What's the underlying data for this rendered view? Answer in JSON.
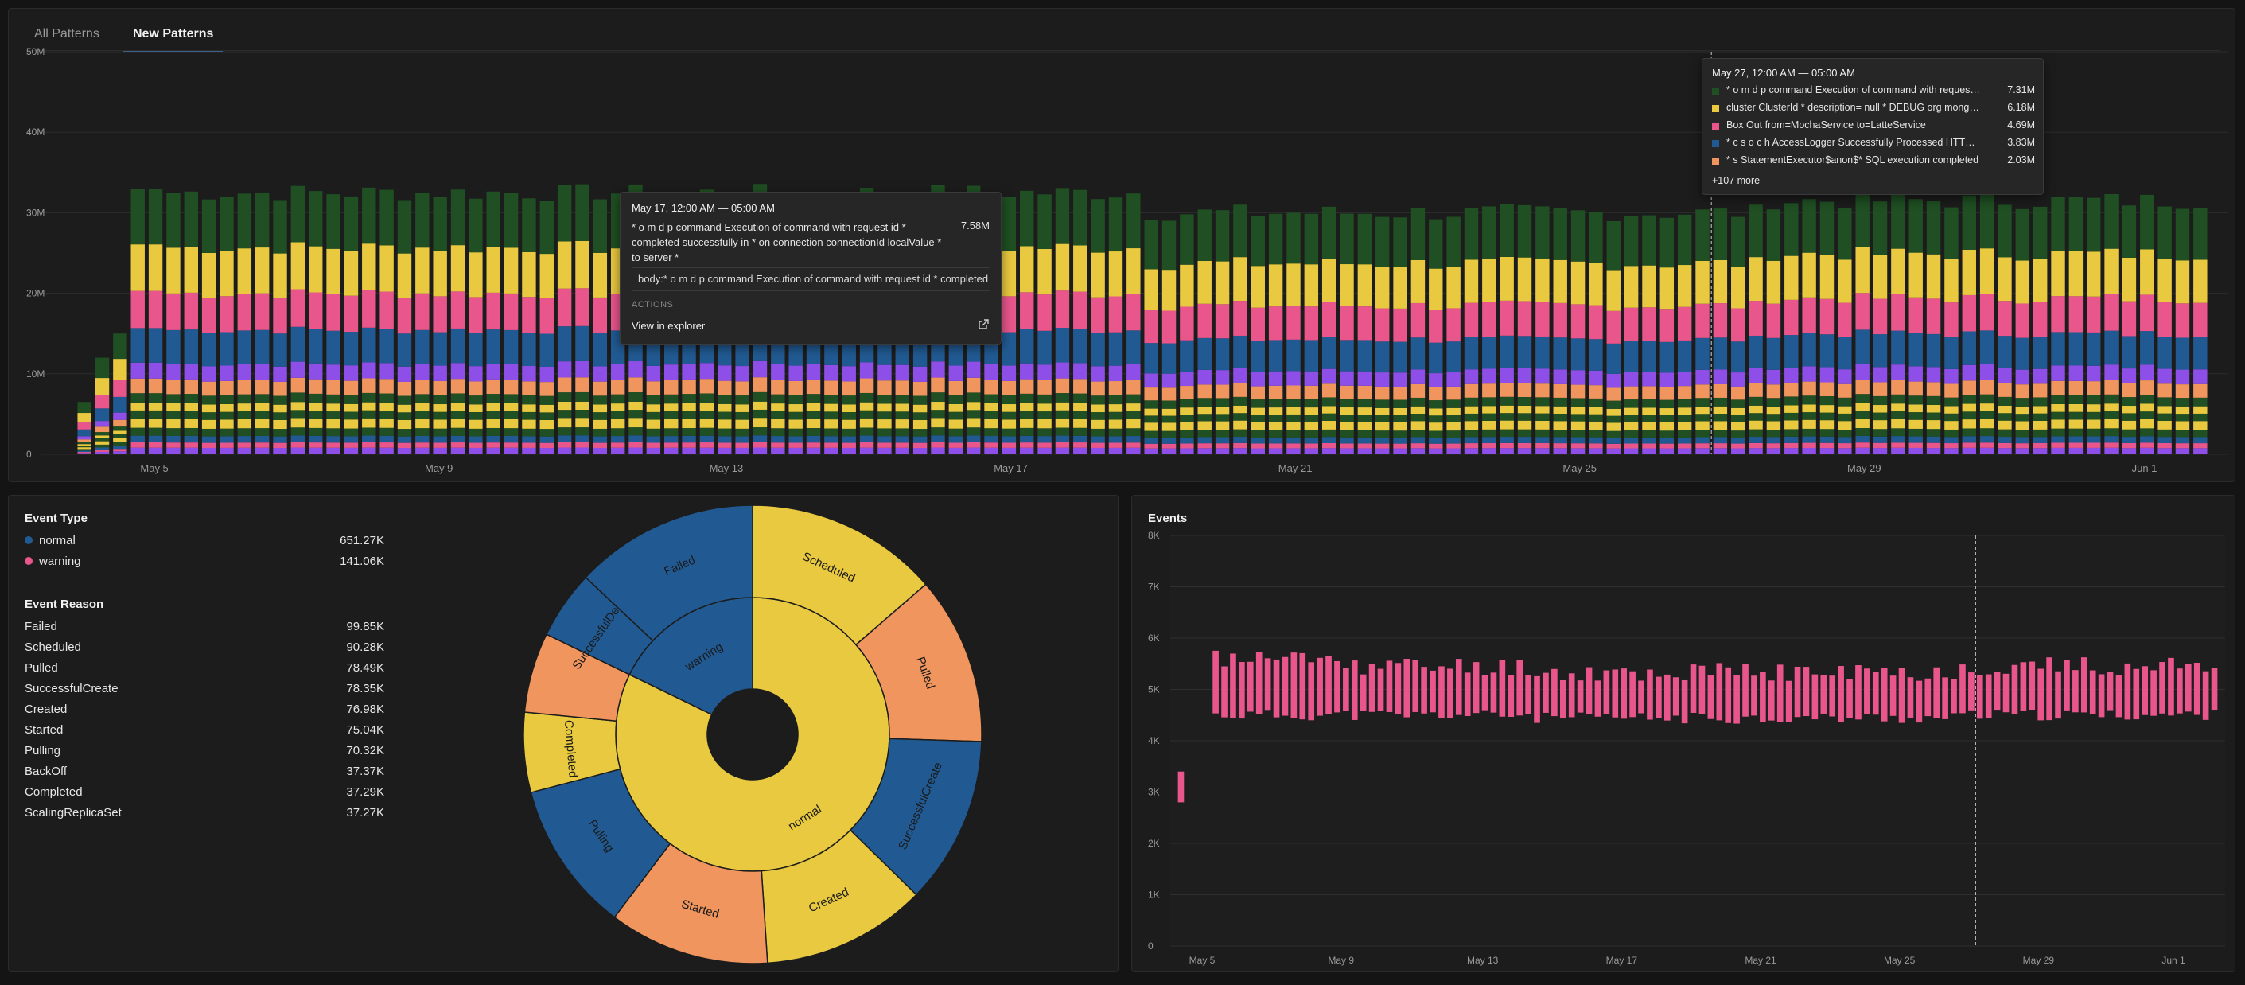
{
  "tabs": [
    {
      "label": "All Patterns",
      "active": false
    },
    {
      "label": "New Patterns",
      "active": true
    }
  ],
  "colors": {
    "dark_green": "#1f4f22",
    "yellow": "#e8c93f",
    "pink": "#e8568c",
    "blue": "#215a93",
    "purple": "#8e4fe8",
    "orange": "#f0955e",
    "accent_tab": "#4a90e2"
  },
  "patterns_chart": {
    "y_ticks": [
      "0",
      "10M",
      "20M",
      "30M",
      "40M",
      "50M"
    ],
    "x_ticks": [
      "May 5",
      "May 9",
      "May 13",
      "May 17",
      "May 21",
      "May 25",
      "May 29",
      "Jun 1"
    ],
    "chart_data": {
      "type": "bar",
      "stacked": true,
      "x_start": "May 4",
      "bars_per_day": 4,
      "bar_count": 120,
      "ylim": [
        0,
        50000000
      ],
      "total_level_estimate": [
        6500000,
        12000000,
        15000000,
        33000000,
        33000000,
        33000000,
        32000000,
        32000000
      ],
      "series_colors": [
        "#1f4f22",
        "#e8c93f",
        "#e8568c",
        "#215a93",
        "#8e4fe8",
        "#f0955e"
      ],
      "grid": true,
      "crosshair_at": "May 27"
    }
  },
  "tooltip_left": {
    "title": "May 17, 12:00 AM — 05:00 AM",
    "text": "* o m d p command Execution of command with request id * completed successfully in * on connection connectionId localValue * to server *",
    "value": "7.58M",
    "body": "body:* o m d p command Execution of command with request id * completed",
    "actions_label": "ACTIONS",
    "link_label": "View in explorer"
  },
  "tooltip_right": {
    "title": "May 27, 12:00 AM — 05:00 AM",
    "rows": [
      {
        "label": "* o m d p command Execution of command with request id * completed successfully",
        "value": "7.31M",
        "color": "#1f4f22"
      },
      {
        "label": "cluster ClusterId * description= null * DEBUG org mongodb driver cluster",
        "value": "6.18M",
        "color": "#e8c93f"
      },
      {
        "label": "Box Out from=MochaService to=LatteService",
        "value": "4.69M",
        "color": "#e8568c"
      },
      {
        "label": "* c s o c h AccessLogger Successfully Processed HTTP request",
        "value": "3.83M",
        "color": "#215a93"
      },
      {
        "label": "* s StatementExecutor$anon$* SQL execution completed",
        "value": "2.03M",
        "color": "#f0955e"
      }
    ],
    "more": "+107 more"
  },
  "event_type": {
    "heading": "Event Type",
    "items": [
      {
        "label": "normal",
        "value": "651.27K",
        "color": "#215a93"
      },
      {
        "label": "warning",
        "value": "141.06K",
        "color": "#e8568c"
      }
    ]
  },
  "event_reason": {
    "heading": "Event Reason",
    "items": [
      {
        "label": "Failed",
        "value": "99.85K"
      },
      {
        "label": "Scheduled",
        "value": "90.28K"
      },
      {
        "label": "Pulled",
        "value": "78.49K"
      },
      {
        "label": "SuccessfulCreate",
        "value": "78.35K"
      },
      {
        "label": "Created",
        "value": "76.98K"
      },
      {
        "label": "Started",
        "value": "75.04K"
      },
      {
        "label": "Pulling",
        "value": "70.32K"
      },
      {
        "label": "BackOff",
        "value": "37.37K"
      },
      {
        "label": "Completed",
        "value": "37.29K"
      },
      {
        "label": "ScalingReplicaSet",
        "value": "37.27K"
      }
    ]
  },
  "sunburst": {
    "chart_data": {
      "type": "pie",
      "inner_ring": [
        {
          "label": "normal",
          "value": 651.27,
          "color": "#e8c93f"
        },
        {
          "label": "warning",
          "value": 141.06,
          "color": "#215a93"
        }
      ],
      "outer_ring": [
        {
          "label": "Scheduled",
          "value": 90.28,
          "color": "#e8c93f"
        },
        {
          "label": "Pulled",
          "value": 78.49,
          "color": "#f0955e"
        },
        {
          "label": "SuccessfulCreate",
          "value": 78.35,
          "color": "#215a93"
        },
        {
          "label": "Created",
          "value": 76.98,
          "color": "#e8c93f"
        },
        {
          "label": "Started",
          "value": 75.04,
          "color": "#f0955e"
        },
        {
          "label": "Pulling",
          "value": 70.32,
          "color": "#215a93"
        },
        {
          "label": "Completed",
          "value": 37.29,
          "color": "#e8c93f"
        },
        {
          "label": "",
          "value": 37.37,
          "color": "#f0955e"
        },
        {
          "label": "SuccessfulDelete",
          "value": 37.0,
          "color": "#215a93"
        },
        {
          "label": "Failed",
          "value": 99.85,
          "color": "#215a93"
        }
      ]
    }
  },
  "events_chart": {
    "title": "Events",
    "y_ticks": [
      "0",
      "1K",
      "2K",
      "3K",
      "4K",
      "5K",
      "6K",
      "7K",
      "8K"
    ],
    "x_ticks": [
      "May 5",
      "May 9",
      "May 13",
      "May 17",
      "May 21",
      "May 25",
      "May 29",
      "Jun 1"
    ],
    "chart_data": {
      "type": "bar",
      "x_start": "May 4",
      "bars_per_day": 4,
      "bar_count": 120,
      "ylim": [
        0,
        8000
      ],
      "floating_bars": true,
      "first_bar_range": [
        2800,
        3400
      ],
      "typical_range": [
        4500,
        5600
      ],
      "crosshair_at": "May 27",
      "color": "#e8568c"
    }
  }
}
